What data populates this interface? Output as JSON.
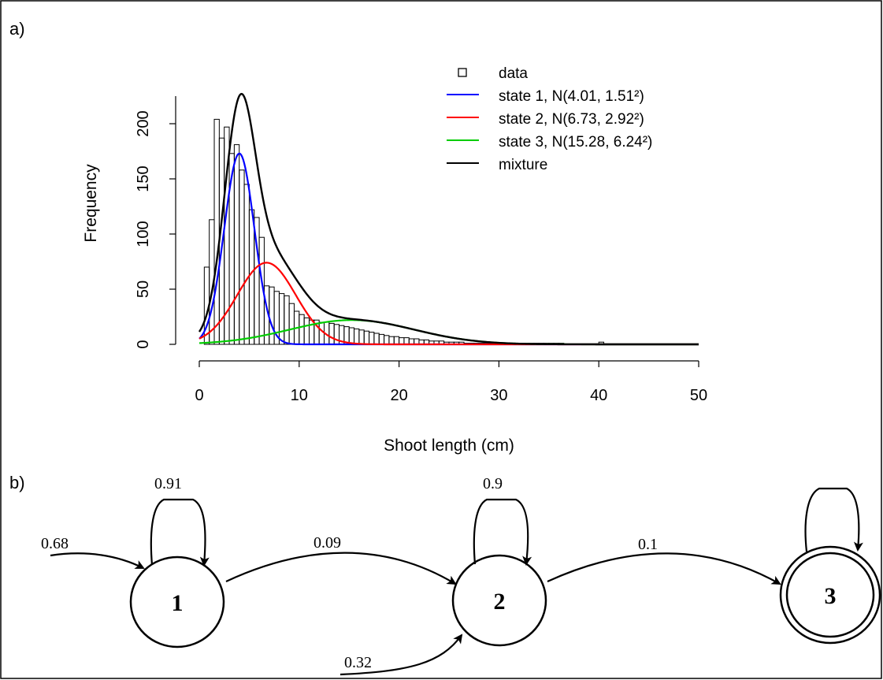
{
  "panel_a_label": "a)",
  "panel_b_label": "b)",
  "chart_data": {
    "type": "bar",
    "title": "",
    "xlabel": "Shoot length (cm)",
    "ylabel": "Frequency",
    "xlim": [
      0,
      50
    ],
    "ylim": [
      0,
      225
    ],
    "x_ticks": [
      "0",
      "10",
      "20",
      "30",
      "40",
      "50"
    ],
    "y_ticks": [
      "0",
      "50",
      "100",
      "150",
      "200"
    ],
    "grid": false,
    "legend_position": "top-right",
    "legend": [
      {
        "label": "data",
        "type": "square",
        "color": "#000000"
      },
      {
        "label": "state 1, N(4.01, 1.51²)",
        "type": "line",
        "color": "#0000ff"
      },
      {
        "label": "state 2, N(6.73, 2.92²)",
        "type": "line",
        "color": "#ff0000"
      },
      {
        "label": "state 3, N(15.28, 6.24²)",
        "type": "line",
        "color": "#00cc00"
      },
      {
        "label": "mixture",
        "type": "line",
        "color": "#000000"
      }
    ],
    "histogram": {
      "bin_width": 0.5,
      "bin_start": 0.5,
      "counts": [
        70,
        113,
        204,
        187,
        197,
        173,
        181,
        158,
        145,
        122,
        115,
        97,
        53,
        52,
        48,
        46,
        44,
        37,
        30,
        27,
        24,
        22,
        22,
        20,
        20,
        19,
        18,
        17,
        16,
        15,
        14,
        13,
        12,
        11,
        10,
        9,
        8,
        7,
        7,
        6,
        6,
        5,
        5,
        4,
        4,
        3,
        3,
        3,
        2,
        2,
        2,
        2,
        1,
        1,
        1,
        1,
        1,
        1,
        1,
        1,
        1,
        1,
        1,
        1,
        1,
        1,
        1,
        1,
        1,
        1,
        1,
        1,
        0,
        0,
        0,
        0,
        0,
        0,
        0,
        2
      ]
    },
    "series": [
      {
        "name": "state 1, N(4.01, 1.51²)",
        "color": "#0000ff",
        "mean": 4.01,
        "sd": 1.51,
        "peak": 173
      },
      {
        "name": "state 2, N(6.73, 2.92²)",
        "color": "#ff0000",
        "mean": 6.73,
        "sd": 2.92,
        "peak": 74
      },
      {
        "name": "state 3, N(15.28, 6.24²)",
        "color": "#00cc00",
        "mean": 15.28,
        "sd": 6.24,
        "peak": 22
      },
      {
        "name": "mixture",
        "color": "#000000"
      }
    ]
  },
  "diagram": {
    "states": [
      {
        "id": "1",
        "label": "1",
        "absorbing": false
      },
      {
        "id": "2",
        "label": "2",
        "absorbing": false
      },
      {
        "id": "3",
        "label": "3",
        "absorbing": true
      }
    ],
    "initial_1": "0.68",
    "initial_2": "0.32",
    "self_1": "0.91",
    "self_2": "0.9",
    "trans_1_2": "0.09",
    "trans_2_3": "0.1"
  }
}
